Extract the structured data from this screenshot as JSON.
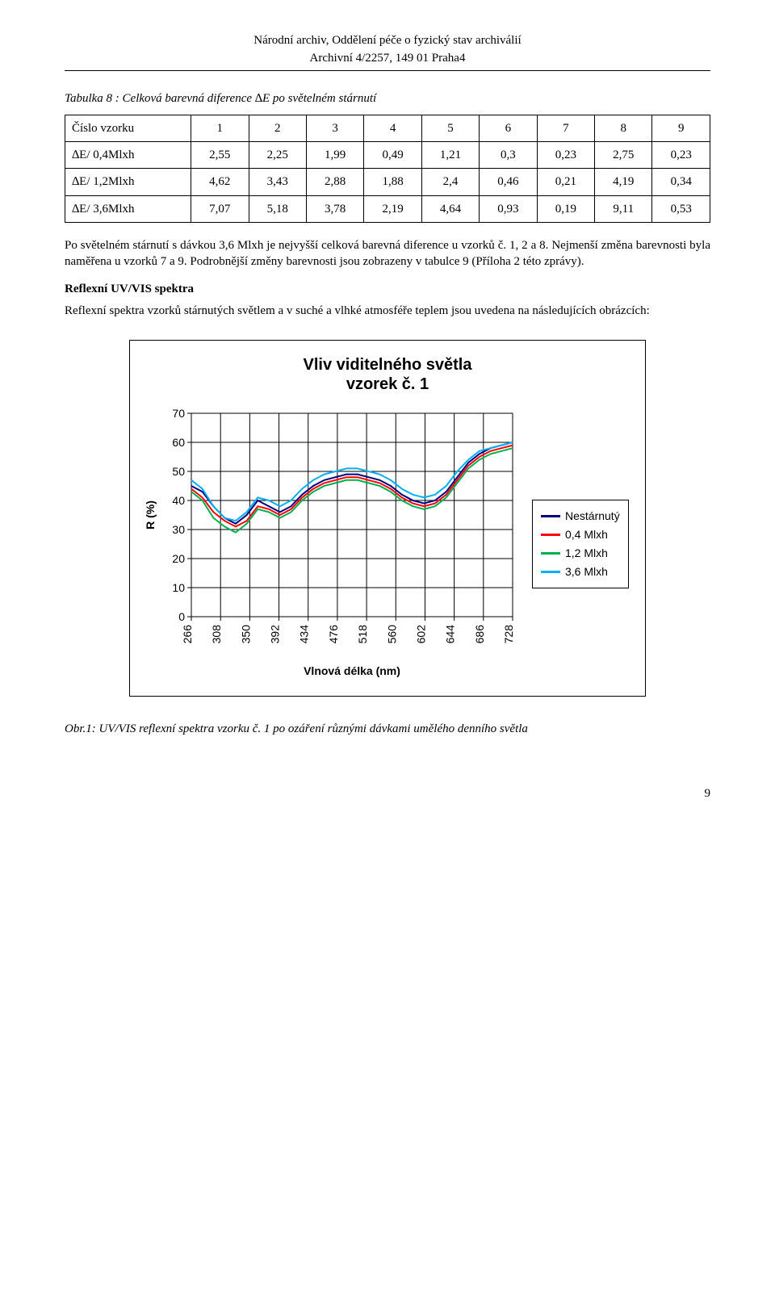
{
  "header": {
    "line1": "Národní archiv, Oddělení péče o fyzický stav archiválií",
    "line2": "Archivní 4/2257, 149 01 Praha4"
  },
  "table": {
    "caption": "Tabulka 8 : Celková barevná diference ∆E po světelném stárnutí",
    "columns": [
      "Číslo vzorku",
      "1",
      "2",
      "3",
      "4",
      "5",
      "6",
      "7",
      "8",
      "9"
    ],
    "rows": [
      [
        "∆E/ 0,4Mlxh",
        "2,55",
        "2,25",
        "1,99",
        "0,49",
        "1,21",
        "0,3",
        "0,23",
        "2,75",
        "0,23"
      ],
      [
        "∆E/ 1,2Mlxh",
        "4,62",
        "3,43",
        "2,88",
        "1,88",
        "2,4",
        "0,46",
        "0,21",
        "4,19",
        "0,34"
      ],
      [
        "∆E/ 3,6Mlxh",
        "7,07",
        "5,18",
        "3,78",
        "2,19",
        "4,64",
        "0,93",
        "0,19",
        "9,11",
        "0,53"
      ]
    ]
  },
  "para1": "Po světelném stárnutí s dávkou 3,6 Mlxh je nejvyšší celková barevná diference u vzorků č. 1, 2 a 8. Nejmenší změna barevnosti byla naměřena u vzorků 7 a 9. Podrobnější změny barevnosti jsou zobrazeny v tabulce 9 (Příloha 2 této zprávy).",
  "section_head": "Reflexní UV/VIS spektra",
  "para2": "Reflexní spektra vzorků stárnutých světlem a v suché a vlhké atmosféře teplem jsou uvedena na následujících obrázcích:",
  "chart": {
    "type": "line",
    "title_line1": "Vliv viditelného světla",
    "title_line2": "vzorek č. 1",
    "ylabel": "R (%)",
    "xlabel": "Vlnová délka (nm)",
    "ylim": [
      0,
      70
    ],
    "ytick_step": 10,
    "yticks": [
      0,
      10,
      20,
      30,
      40,
      50,
      60,
      70
    ],
    "xticks": [
      266,
      308,
      350,
      392,
      434,
      476,
      518,
      560,
      602,
      644,
      686,
      728
    ],
    "plot_bg": "#ffffff",
    "frame_color": "#808080",
    "grid_color": "#000000",
    "tick_fontsize": 14,
    "label_fontsize": 14,
    "title_fontsize": 20,
    "line_width": 2,
    "series": [
      {
        "name": "Nestárnutý",
        "color": "#000080",
        "y": [
          45,
          43,
          38,
          34,
          32,
          35,
          40,
          38,
          36,
          38,
          42,
          45,
          47,
          48,
          49,
          49,
          48,
          47,
          45,
          42,
          40,
          39,
          40,
          43,
          48,
          53,
          56,
          58,
          59,
          60
        ]
      },
      {
        "name": "0,4 Mlxh",
        "color": "#ff0000",
        "y": [
          44,
          41,
          36,
          33,
          31,
          33,
          38,
          37,
          35,
          37,
          41,
          44,
          46,
          47,
          48,
          48,
          47,
          46,
          44,
          41,
          39,
          38,
          39,
          42,
          47,
          52,
          55,
          57,
          58,
          59
        ]
      },
      {
        "name": "1,2 Mlxh",
        "color": "#00b050",
        "y": [
          43,
          40,
          34,
          31,
          29,
          32,
          37,
          36,
          34,
          36,
          40,
          43,
          45,
          46,
          47,
          47,
          46,
          45,
          43,
          40,
          38,
          37,
          38,
          41,
          46,
          51,
          54,
          56,
          57,
          58
        ]
      },
      {
        "name": "3,6 Mlxh",
        "color": "#00b0f0",
        "y": [
          47,
          44,
          38,
          34,
          33,
          36,
          41,
          40,
          38,
          40,
          44,
          47,
          49,
          50,
          51,
          51,
          50,
          49,
          47,
          44,
          42,
          41,
          42,
          45,
          50,
          54,
          57,
          58,
          59,
          60
        ]
      }
    ],
    "x_count": 30
  },
  "fig_caption": "Obr.1: UV/VIS reflexní spektra vzorku č. 1 po ozáření různými dávkami umělého denního světla",
  "page_number": "9"
}
